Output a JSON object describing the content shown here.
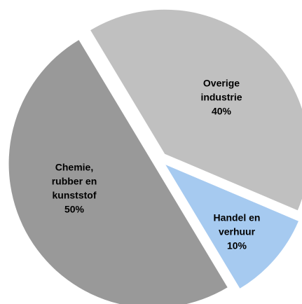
{
  "chart_data": {
    "type": "pie",
    "categories": [
      [
        "Overige",
        "industrie"
      ],
      [
        "Handel en",
        "verhuur"
      ],
      [
        "Chemie,",
        "rubber en",
        "kunststof"
      ]
    ],
    "values": [
      40,
      10,
      50
    ],
    "value_labels": [
      "40%",
      "10%",
      "50%"
    ],
    "colors": [
      "#c0c0c0",
      "#a6caf0",
      "#999999"
    ]
  }
}
